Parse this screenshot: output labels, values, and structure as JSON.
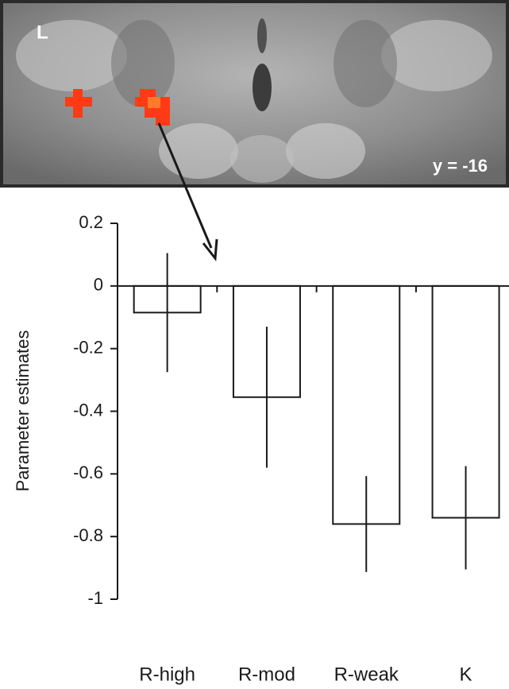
{
  "chart_data": {
    "type": "bar",
    "annotations": [
      "L",
      "y = -16"
    ],
    "ylabel": "Parameter estimates",
    "categories": [
      "R-high",
      "R-mod",
      "R-weak",
      "K"
    ],
    "values": [
      -0.085,
      -0.355,
      -0.76,
      -0.74
    ],
    "errors": [
      0.19,
      0.225,
      0.153,
      0.165
    ],
    "color": "#ffffff",
    "ylim": [
      -1,
      0.2
    ],
    "yticks": [
      0.2,
      0,
      -0.2,
      -0.4,
      -0.6,
      -0.8,
      -1
    ]
  }
}
